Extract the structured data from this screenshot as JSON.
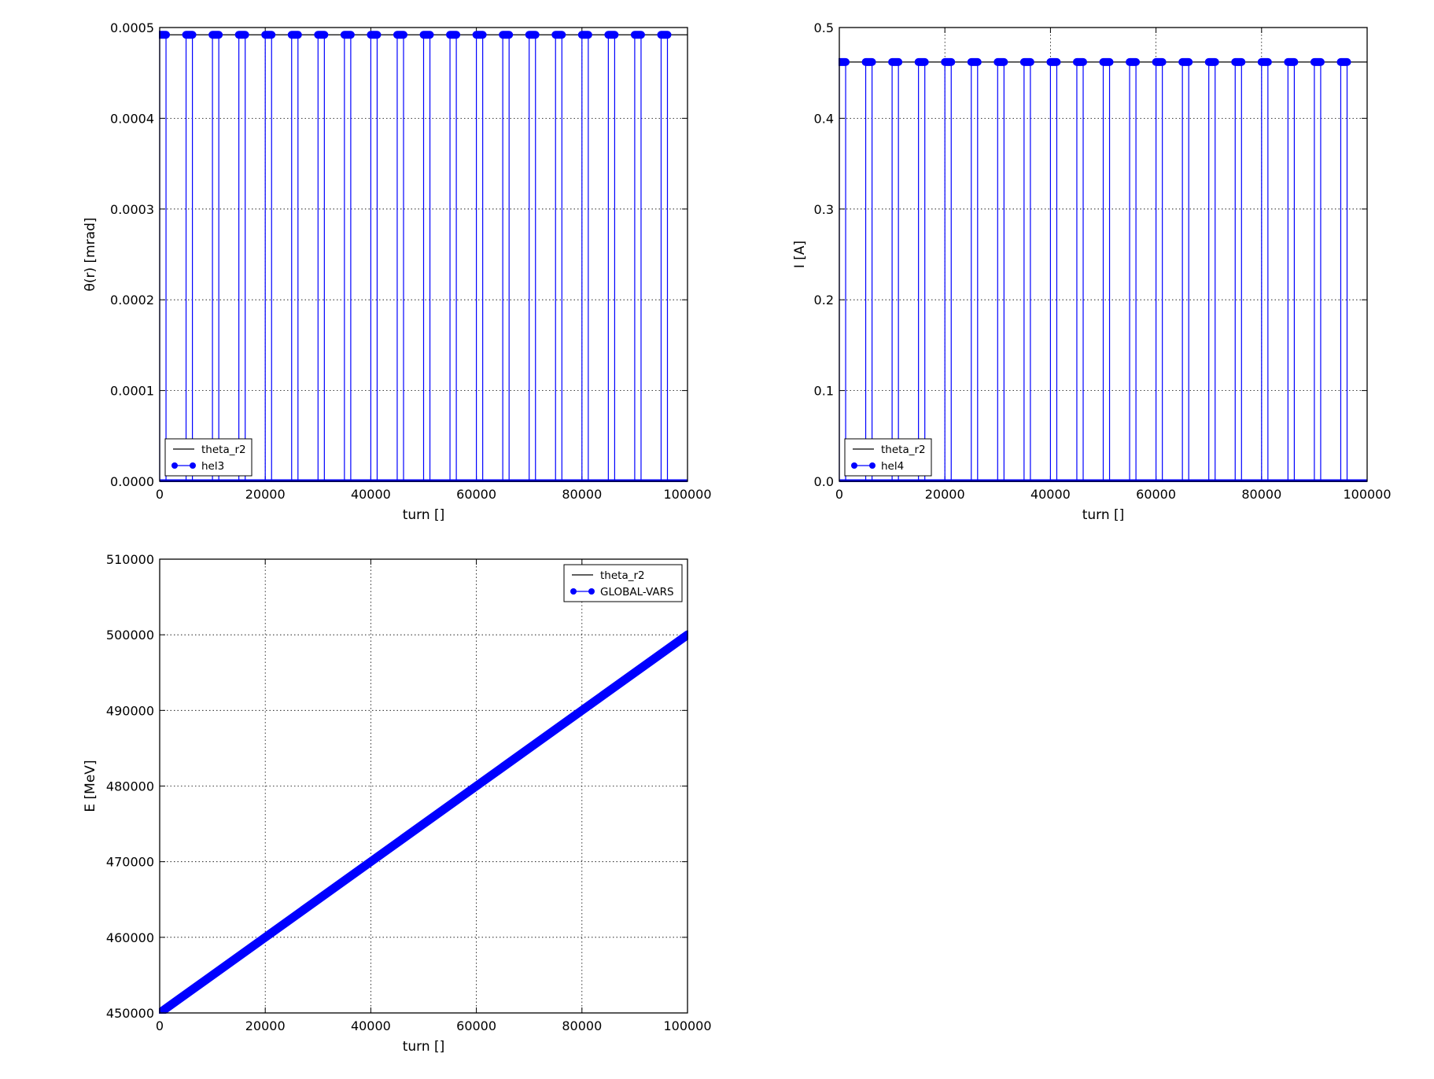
{
  "chart_data": [
    {
      "type": "line",
      "xlabel": "turn []",
      "ylabel": "θ(r) [mrad]",
      "xlim": [
        0,
        100000
      ],
      "ylim": [
        0,
        0.0005
      ],
      "xticks": [
        "0",
        "20000",
        "40000",
        "60000",
        "80000",
        "100000"
      ],
      "yticks": [
        "0.0000",
        "0.0001",
        "0.0002",
        "0.0003",
        "0.0004",
        "0.0005"
      ],
      "grid": true,
      "legend_position": "lower left",
      "series": [
        {
          "name": "theta_r2",
          "color": "#000000",
          "style": "line",
          "x": [
            0,
            100000
          ],
          "y": [
            0.000492,
            0.000492
          ]
        },
        {
          "name": "hel3",
          "color": "#0000ff",
          "style": "line-marker",
          "period": 5000,
          "pulse_width": 1200,
          "pulse_start": 0,
          "high": 0.000492,
          "low": 0
        }
      ]
    },
    {
      "type": "line",
      "xlabel": "turn []",
      "ylabel": "I [A]",
      "xlim": [
        0,
        100000
      ],
      "ylim": [
        0,
        0.5
      ],
      "xticks": [
        "0",
        "20000",
        "40000",
        "60000",
        "80000",
        "100000"
      ],
      "yticks": [
        "0.0",
        "0.1",
        "0.2",
        "0.3",
        "0.4",
        "0.5"
      ],
      "grid": true,
      "legend_position": "lower left",
      "series": [
        {
          "name": "theta_r2",
          "color": "#000000",
          "style": "line",
          "x": [
            0,
            100000
          ],
          "y": [
            0.462,
            0.462
          ]
        },
        {
          "name": "hel4",
          "color": "#0000ff",
          "style": "line-marker",
          "period": 5000,
          "pulse_width": 1200,
          "pulse_start": 0,
          "high": 0.462,
          "low": 0
        }
      ]
    },
    {
      "type": "line",
      "xlabel": "turn []",
      "ylabel": "E [MeV]",
      "xlim": [
        0,
        100000
      ],
      "ylim": [
        450000,
        510000
      ],
      "xticks": [
        "0",
        "20000",
        "40000",
        "60000",
        "80000",
        "100000"
      ],
      "yticks": [
        "450000",
        "460000",
        "470000",
        "480000",
        "490000",
        "500000",
        "510000"
      ],
      "grid": true,
      "legend_position": "upper right",
      "series": [
        {
          "name": "theta_r2",
          "color": "#000000",
          "style": "line",
          "x": [
            0,
            100000
          ],
          "y": [
            450000,
            500000
          ]
        },
        {
          "name": "GLOBAL-VARS",
          "color": "#0000ff",
          "style": "line-marker",
          "x": [
            0,
            100000
          ],
          "y": [
            450000,
            500000
          ]
        }
      ]
    }
  ]
}
